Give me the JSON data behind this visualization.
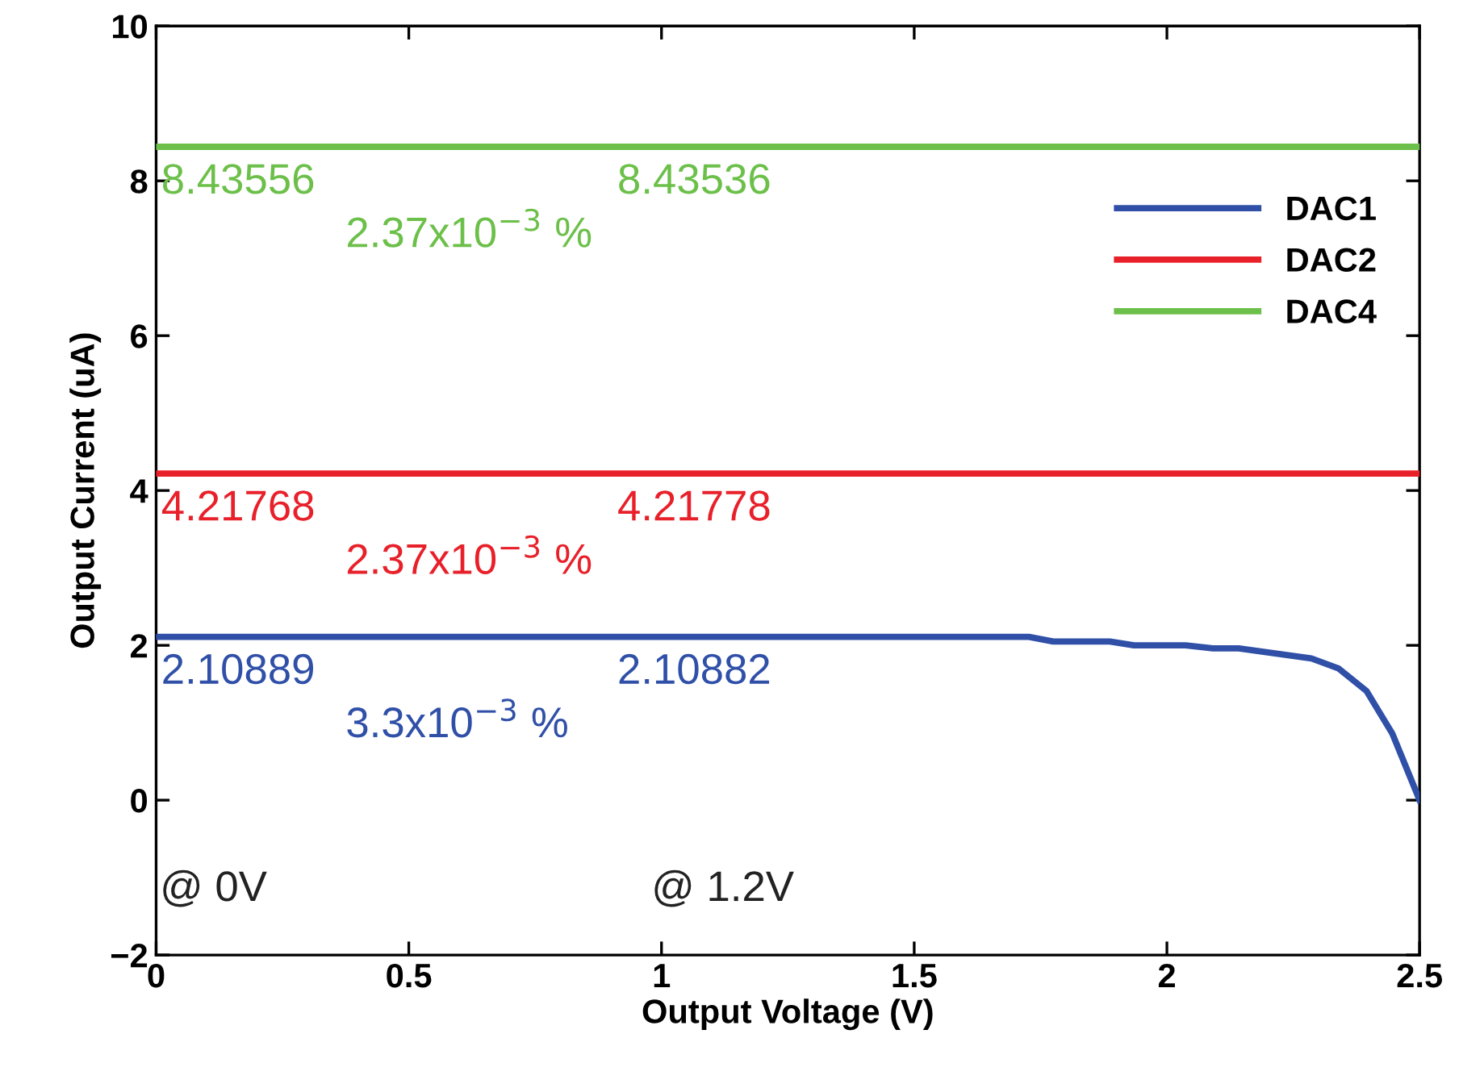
{
  "chart_data": {
    "type": "line",
    "xlabel": "Output Voltage (V)",
    "ylabel": "Output Current (uA)",
    "xlim": [
      0,
      2.5
    ],
    "ylim": [
      -2,
      10
    ],
    "xticks": [
      0,
      0.5,
      1,
      1.5,
      2,
      2.5
    ],
    "yticks": [
      {
        "value": -2,
        "label": "−2"
      },
      0,
      2,
      4,
      6,
      8,
      10
    ],
    "grid": false,
    "legend": "top right",
    "marker": "none",
    "line_style": "solid",
    "series": [
      {
        "name": "DAC1",
        "color": "#3050a8",
        "x": [
          0,
          1.727,
          1.775,
          1.887,
          1.935,
          2.037,
          2.091,
          2.142,
          2.286,
          2.34,
          2.395,
          2.446,
          2.5
        ],
        "values": [
          2.11,
          2.11,
          2.05,
          2.05,
          2.0,
          2.0,
          1.96,
          1.96,
          1.83,
          1.7,
          1.41,
          0.86,
          0.0
        ]
      },
      {
        "name": "DAC2",
        "color": "#e8202a",
        "x": [
          0,
          2.5
        ],
        "values": [
          4.22,
          4.22
        ]
      },
      {
        "name": "DAC4",
        "color": "#6cc04a",
        "x": [
          0,
          2.5
        ],
        "values": [
          8.44,
          8.44
        ]
      }
    ],
    "annotations": [
      "8.43556",
      "8.43536",
      "2.37x10$^{−3}$ %",
      "4.21768",
      "4.21778",
      "2.37x10$^{−3}$ %",
      "2.10889",
      "2.10882",
      "3.3x10$^{−3}$ %",
      "@ 0V",
      "@ 1.2V"
    ]
  }
}
